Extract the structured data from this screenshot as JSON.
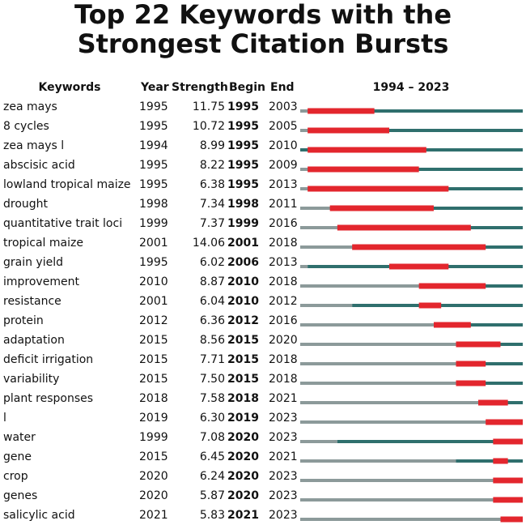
{
  "chart_data": {
    "type": "burst",
    "title": "Top 22 Keywords with the Strongest Citation Bursts",
    "columns": [
      "Keywords",
      "Year",
      "Strength",
      "Begin",
      "End"
    ],
    "period": "1994 – 2023",
    "xlim": [
      1994,
      2023
    ],
    "colors": {
      "before": "#8c9a9a",
      "active": "#2f6f6d",
      "burst": "#e3262d"
    },
    "rows": [
      {
        "keyword": "zea mays",
        "year": 1995,
        "strength": "11.75",
        "begin": 1995,
        "end": 2003
      },
      {
        "keyword": "8 cycles",
        "year": 1995,
        "strength": "10.72",
        "begin": 1995,
        "end": 2005
      },
      {
        "keyword": "zea mays l",
        "year": 1994,
        "strength": "8.99",
        "begin": 1995,
        "end": 2010
      },
      {
        "keyword": "abscisic acid",
        "year": 1995,
        "strength": "8.22",
        "begin": 1995,
        "end": 2009
      },
      {
        "keyword": "lowland tropical maize",
        "year": 1995,
        "strength": "6.38",
        "begin": 1995,
        "end": 2013
      },
      {
        "keyword": "drought",
        "year": 1998,
        "strength": "7.34",
        "begin": 1998,
        "end": 2011
      },
      {
        "keyword": "quantitative trait loci",
        "year": 1999,
        "strength": "7.37",
        "begin": 1999,
        "end": 2016
      },
      {
        "keyword": "tropical maize",
        "year": 2001,
        "strength": "14.06",
        "begin": 2001,
        "end": 2018
      },
      {
        "keyword": "grain yield",
        "year": 1995,
        "strength": "6.02",
        "begin": 2006,
        "end": 2013
      },
      {
        "keyword": "improvement",
        "year": 2010,
        "strength": "8.87",
        "begin": 2010,
        "end": 2018
      },
      {
        "keyword": "resistance",
        "year": 2001,
        "strength": "6.04",
        "begin": 2010,
        "end": 2012
      },
      {
        "keyword": "protein",
        "year": 2012,
        "strength": "6.36",
        "begin": 2012,
        "end": 2016
      },
      {
        "keyword": "adaptation",
        "year": 2015,
        "strength": "8.56",
        "begin": 2015,
        "end": 2020
      },
      {
        "keyword": "deficit irrigation",
        "year": 2015,
        "strength": "7.71",
        "begin": 2015,
        "end": 2018
      },
      {
        "keyword": "variability",
        "year": 2015,
        "strength": "7.50",
        "begin": 2015,
        "end": 2018
      },
      {
        "keyword": "plant responses",
        "year": 2018,
        "strength": "7.58",
        "begin": 2018,
        "end": 2021
      },
      {
        "keyword": "l",
        "year": 2019,
        "strength": "6.30",
        "begin": 2019,
        "end": 2023
      },
      {
        "keyword": "water",
        "year": 1999,
        "strength": "7.08",
        "begin": 2020,
        "end": 2023
      },
      {
        "keyword": "gene",
        "year": 2015,
        "strength": "6.45",
        "begin": 2020,
        "end": 2021
      },
      {
        "keyword": "crop",
        "year": 2020,
        "strength": "6.24",
        "begin": 2020,
        "end": 2023
      },
      {
        "keyword": "genes",
        "year": 2020,
        "strength": "5.87",
        "begin": 2020,
        "end": 2023
      },
      {
        "keyword": "salicylic acid",
        "year": 2021,
        "strength": "5.83",
        "begin": 2021,
        "end": 2023
      }
    ]
  }
}
